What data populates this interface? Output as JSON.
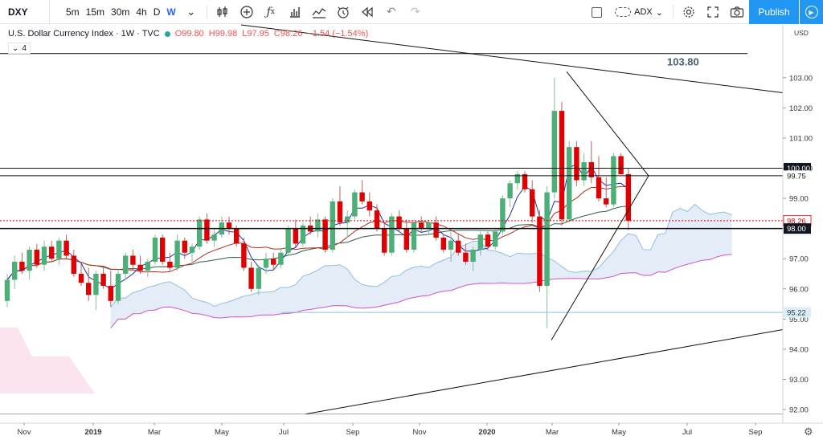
{
  "toolbar": {
    "symbol": "DXY",
    "intervals": [
      "5m",
      "15m",
      "30m",
      "4h",
      "D",
      "W"
    ],
    "active_interval": "W",
    "indicator_label": "ADX",
    "publish_label": "Publish"
  },
  "legend": {
    "title": "U.S. Dollar Currency Index · 1W · TVC",
    "open": "O99.80",
    "high": "H99.98",
    "low": "L97.95",
    "close": "C98.26",
    "change": "−1.54 (−1.54%)",
    "indicators_count": "4"
  },
  "annotation": "103.80",
  "colors": {
    "up": "#26a69a",
    "up_body": "#4caf77",
    "down": "#e00000",
    "cloud_fill": "#e3ecf7",
    "cloud_edge": "#90bfe0",
    "lagging": "#d04fd0",
    "accent": "#2196f3"
  },
  "chart_data": {
    "type": "candlestick",
    "title": "U.S. Dollar Currency Index",
    "currency": "USD",
    "ylim": [
      91.55,
      104.75
    ],
    "yticks": [
      "103.00",
      "102.00",
      "101.00",
      "100.00",
      "99.00",
      "98.00",
      "97.00",
      "96.00",
      "95.00",
      "94.00",
      "93.00",
      "92.00"
    ],
    "xticks": [
      "Nov",
      "2019",
      "Mar",
      "May",
      "Jul",
      "Sep",
      "Nov",
      "2020",
      "Mar",
      "May",
      "Jul",
      "Sep"
    ],
    "price_labels": [
      {
        "value": 100.0,
        "text": "100.00",
        "style": "dark"
      },
      {
        "value": 99.75,
        "text": "99.75",
        "style": "plain"
      },
      {
        "value": 98.26,
        "text": "98.26",
        "style": "red"
      },
      {
        "value": 98.0,
        "text": "98.00",
        "style": "dark"
      },
      {
        "value": 95.22,
        "text": "95.22",
        "style": "blue"
      }
    ],
    "horizontal_levels": [
      103.8,
      100.0,
      99.75,
      98.0
    ],
    "candles": [
      {
        "o": 95.6,
        "h": 96.5,
        "l": 95.4,
        "c": 96.3
      },
      {
        "o": 96.3,
        "h": 97.1,
        "l": 96.0,
        "c": 96.9
      },
      {
        "o": 96.9,
        "h": 97.2,
        "l": 96.5,
        "c": 96.6
      },
      {
        "o": 96.6,
        "h": 97.4,
        "l": 96.3,
        "c": 97.3
      },
      {
        "o": 97.3,
        "h": 97.5,
        "l": 96.7,
        "c": 96.8
      },
      {
        "o": 96.8,
        "h": 97.6,
        "l": 96.6,
        "c": 97.4
      },
      {
        "o": 97.4,
        "h": 97.6,
        "l": 96.9,
        "c": 97.0
      },
      {
        "o": 97.0,
        "h": 97.7,
        "l": 96.8,
        "c": 97.6
      },
      {
        "o": 97.6,
        "h": 97.8,
        "l": 97.0,
        "c": 97.1
      },
      {
        "o": 97.1,
        "h": 97.3,
        "l": 96.4,
        "c": 96.5
      },
      {
        "o": 96.5,
        "h": 96.9,
        "l": 96.1,
        "c": 96.2
      },
      {
        "o": 96.2,
        "h": 96.7,
        "l": 95.6,
        "c": 95.8
      },
      {
        "o": 95.8,
        "h": 96.6,
        "l": 95.3,
        "c": 96.5
      },
      {
        "o": 96.5,
        "h": 96.7,
        "l": 96.0,
        "c": 96.1
      },
      {
        "o": 96.1,
        "h": 96.6,
        "l": 95.4,
        "c": 95.6
      },
      {
        "o": 95.6,
        "h": 96.6,
        "l": 95.5,
        "c": 96.5
      },
      {
        "o": 96.5,
        "h": 97.2,
        "l": 96.3,
        "c": 97.1
      },
      {
        "o": 97.1,
        "h": 97.3,
        "l": 96.6,
        "c": 96.8
      },
      {
        "o": 96.8,
        "h": 97.1,
        "l": 96.5,
        "c": 96.6
      },
      {
        "o": 96.6,
        "h": 97.0,
        "l": 96.4,
        "c": 96.9
      },
      {
        "o": 96.9,
        "h": 97.8,
        "l": 96.8,
        "c": 97.7
      },
      {
        "o": 97.7,
        "h": 97.8,
        "l": 96.8,
        "c": 96.9
      },
      {
        "o": 96.9,
        "h": 97.2,
        "l": 96.6,
        "c": 96.7
      },
      {
        "o": 96.7,
        "h": 97.8,
        "l": 96.6,
        "c": 97.6
      },
      {
        "o": 97.6,
        "h": 97.7,
        "l": 97.0,
        "c": 97.2
      },
      {
        "o": 97.2,
        "h": 97.5,
        "l": 96.9,
        "c": 97.4
      },
      {
        "o": 97.4,
        "h": 98.4,
        "l": 97.3,
        "c": 98.3
      },
      {
        "o": 98.3,
        "h": 98.5,
        "l": 97.5,
        "c": 97.6
      },
      {
        "o": 97.6,
        "h": 98.0,
        "l": 97.4,
        "c": 97.8
      },
      {
        "o": 97.8,
        "h": 98.4,
        "l": 97.7,
        "c": 98.2
      },
      {
        "o": 98.2,
        "h": 98.4,
        "l": 97.8,
        "c": 98.0
      },
      {
        "o": 98.0,
        "h": 98.1,
        "l": 97.4,
        "c": 97.5
      },
      {
        "o": 97.5,
        "h": 97.7,
        "l": 96.6,
        "c": 96.7
      },
      {
        "o": 96.7,
        "h": 96.9,
        "l": 95.9,
        "c": 96.0
      },
      {
        "o": 96.0,
        "h": 96.8,
        "l": 95.8,
        "c": 96.7
      },
      {
        "o": 96.7,
        "h": 97.2,
        "l": 96.5,
        "c": 97.0
      },
      {
        "o": 97.0,
        "h": 97.2,
        "l": 96.6,
        "c": 96.8
      },
      {
        "o": 96.8,
        "h": 97.3,
        "l": 96.7,
        "c": 97.2
      },
      {
        "o": 97.2,
        "h": 98.1,
        "l": 97.1,
        "c": 98.0
      },
      {
        "o": 98.0,
        "h": 98.3,
        "l": 97.4,
        "c": 97.5
      },
      {
        "o": 97.5,
        "h": 98.2,
        "l": 97.4,
        "c": 98.1
      },
      {
        "o": 98.1,
        "h": 98.4,
        "l": 97.8,
        "c": 97.9
      },
      {
        "o": 97.9,
        "h": 98.5,
        "l": 97.7,
        "c": 98.3
      },
      {
        "o": 98.3,
        "h": 98.4,
        "l": 97.2,
        "c": 97.3
      },
      {
        "o": 97.3,
        "h": 99.0,
        "l": 97.2,
        "c": 98.9
      },
      {
        "o": 98.9,
        "h": 99.4,
        "l": 98.1,
        "c": 98.2
      },
      {
        "o": 98.2,
        "h": 98.6,
        "l": 97.7,
        "c": 98.4
      },
      {
        "o": 98.4,
        "h": 99.3,
        "l": 98.3,
        "c": 99.2
      },
      {
        "o": 99.2,
        "h": 99.6,
        "l": 98.8,
        "c": 98.9
      },
      {
        "o": 98.9,
        "h": 99.2,
        "l": 98.4,
        "c": 98.6
      },
      {
        "o": 98.6,
        "h": 98.8,
        "l": 97.9,
        "c": 98.0
      },
      {
        "o": 98.0,
        "h": 98.2,
        "l": 97.1,
        "c": 97.2
      },
      {
        "o": 97.2,
        "h": 98.5,
        "l": 97.1,
        "c": 98.4
      },
      {
        "o": 98.4,
        "h": 98.6,
        "l": 97.9,
        "c": 98.0
      },
      {
        "o": 98.0,
        "h": 98.3,
        "l": 97.2,
        "c": 97.3
      },
      {
        "o": 97.3,
        "h": 98.3,
        "l": 97.2,
        "c": 98.2
      },
      {
        "o": 98.2,
        "h": 98.4,
        "l": 97.9,
        "c": 98.0
      },
      {
        "o": 98.0,
        "h": 98.3,
        "l": 97.8,
        "c": 98.2
      },
      {
        "o": 98.2,
        "h": 98.4,
        "l": 97.6,
        "c": 97.7
      },
      {
        "o": 97.7,
        "h": 97.8,
        "l": 97.2,
        "c": 97.3
      },
      {
        "o": 97.3,
        "h": 97.9,
        "l": 96.9,
        "c": 97.6
      },
      {
        "o": 97.6,
        "h": 97.8,
        "l": 97.1,
        "c": 97.2
      },
      {
        "o": 97.2,
        "h": 97.5,
        "l": 96.8,
        "c": 96.9
      },
      {
        "o": 96.9,
        "h": 97.4,
        "l": 96.6,
        "c": 97.3
      },
      {
        "o": 97.3,
        "h": 97.9,
        "l": 97.1,
        "c": 97.8
      },
      {
        "o": 97.8,
        "h": 97.9,
        "l": 97.3,
        "c": 97.4
      },
      {
        "o": 97.4,
        "h": 98.0,
        "l": 97.3,
        "c": 97.9
      },
      {
        "o": 97.9,
        "h": 99.1,
        "l": 97.8,
        "c": 99.0
      },
      {
        "o": 99.0,
        "h": 99.6,
        "l": 98.7,
        "c": 99.5
      },
      {
        "o": 99.5,
        "h": 99.9,
        "l": 99.3,
        "c": 99.8
      },
      {
        "o": 99.8,
        "h": 99.9,
        "l": 99.2,
        "c": 99.3
      },
      {
        "o": 99.3,
        "h": 99.6,
        "l": 98.2,
        "c": 98.4
      },
      {
        "o": 98.4,
        "h": 98.6,
        "l": 95.9,
        "c": 96.1
      },
      {
        "o": 96.1,
        "h": 99.4,
        "l": 94.7,
        "c": 99.2
      },
      {
        "o": 99.2,
        "h": 102.99,
        "l": 99.0,
        "c": 101.9
      },
      {
        "o": 101.9,
        "h": 102.2,
        "l": 98.1,
        "c": 98.3
      },
      {
        "o": 98.3,
        "h": 100.9,
        "l": 98.2,
        "c": 100.7
      },
      {
        "o": 100.7,
        "h": 100.9,
        "l": 99.4,
        "c": 99.6
      },
      {
        "o": 99.6,
        "h": 100.5,
        "l": 99.4,
        "c": 100.2
      },
      {
        "o": 100.2,
        "h": 100.9,
        "l": 99.5,
        "c": 99.7
      },
      {
        "o": 99.7,
        "h": 100.4,
        "l": 98.9,
        "c": 99.0
      },
      {
        "o": 99.0,
        "h": 99.7,
        "l": 98.7,
        "c": 98.8
      },
      {
        "o": 98.8,
        "h": 100.5,
        "l": 98.7,
        "c": 100.4
      },
      {
        "o": 100.4,
        "h": 100.5,
        "l": 99.8,
        "c": 99.8
      },
      {
        "o": 99.8,
        "h": 99.98,
        "l": 97.95,
        "c": 98.26
      }
    ]
  }
}
